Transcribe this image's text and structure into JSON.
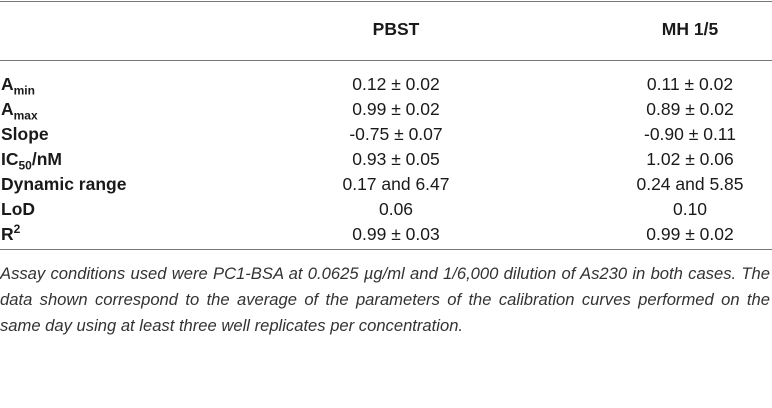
{
  "table": {
    "header": [
      "PBST",
      "MH 1/5"
    ],
    "rows": [
      {
        "label": [
          "A",
          "min"
        ],
        "cells": [
          "0.12 ± 0.02",
          "0.11 ± 0.02"
        ]
      },
      {
        "label": [
          "A",
          "max"
        ],
        "cells": [
          "0.99 ± 0.02",
          "0.89 ± 0.02"
        ]
      },
      {
        "label": [
          "Slope"
        ],
        "cells": [
          "-0.75 ± 0.07",
          "-0.90 ± 0.11"
        ]
      },
      {
        "label": [
          "IC",
          "50",
          "/nM"
        ],
        "cells": [
          "0.93 ± 0.05",
          "1.02 ± 0.06"
        ]
      },
      {
        "label": [
          "Dynamic range"
        ],
        "cells": [
          "0.17 and 6.47",
          "0.24 and 5.85"
        ]
      },
      {
        "label": [
          "LoD"
        ],
        "cells": [
          "0.06",
          "0.10"
        ]
      },
      {
        "label": [
          "R",
          "2"
        ],
        "cells": [
          "0.99 ± 0.03",
          "0.99 ± 0.02"
        ]
      }
    ],
    "footnote": "Assay conditions used were PC1-BSA at 0.0625 µg/ml and 1/6,000 dilution of As230 in both cases. The data shown correspond to the average of the parameters of the calibration curves performed on the same day using at least three well replicates per concentration."
  }
}
